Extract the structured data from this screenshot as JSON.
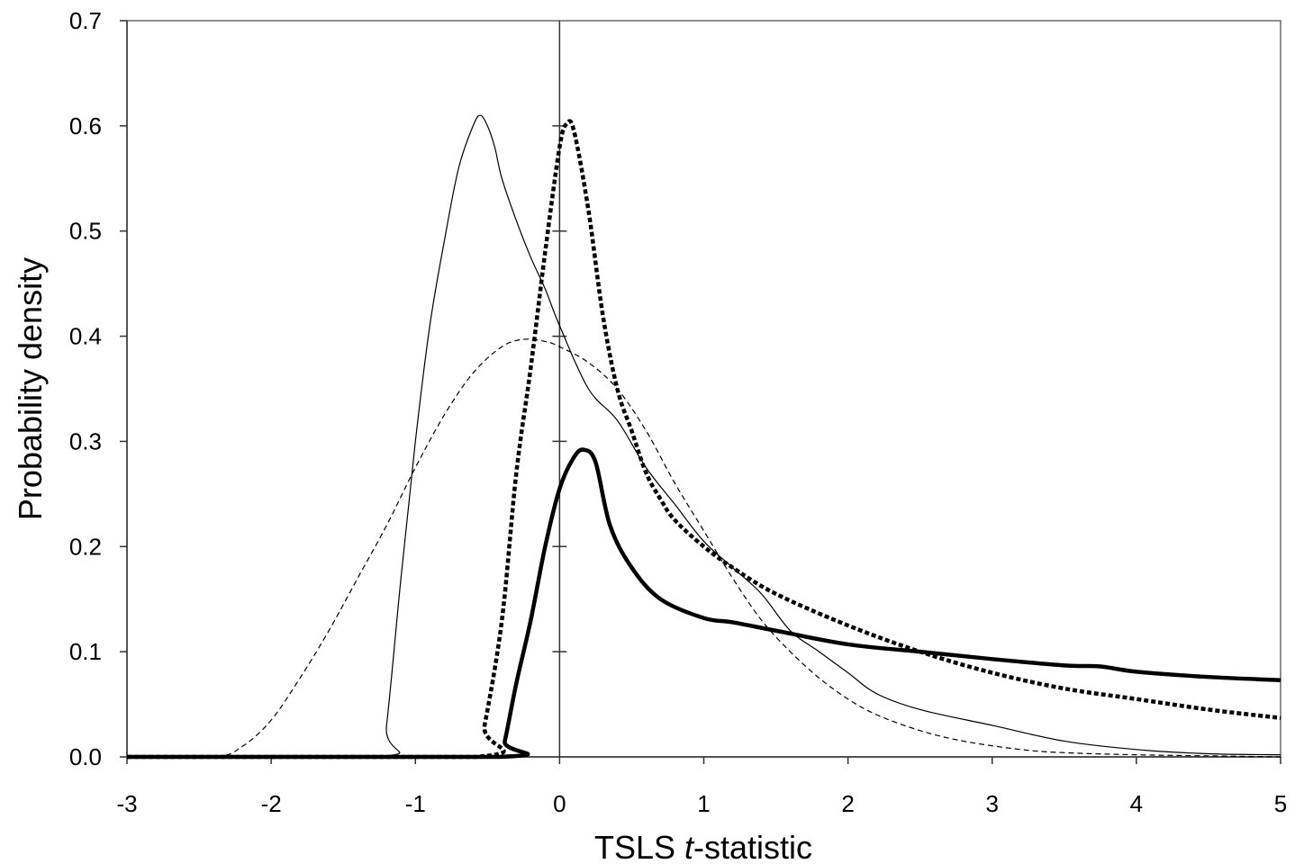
{
  "chart_data": {
    "type": "line",
    "xlabel_prefix": "TSLS ",
    "xlabel_italic": "t",
    "xlabel_suffix": "-statistic",
    "ylabel": "Probability density",
    "xlim": [
      -3,
      5
    ],
    "ylim": [
      0,
      0.7
    ],
    "x_ticks": [
      "-3",
      "-2",
      "-1",
      "0",
      "1",
      "2",
      "3",
      "4",
      "5"
    ],
    "y_ticks": [
      "0.0",
      "0.1",
      "0.2",
      "0.3",
      "0.4",
      "0.5",
      "0.6",
      "0.7"
    ],
    "grid": false,
    "legend": "none",
    "series": [
      {
        "style": "thin-dashed",
        "color": "#000000",
        "points": [
          [
            -3,
            0
          ],
          [
            -2.4,
            0
          ],
          [
            -2.2,
            0.01
          ],
          [
            -2.0,
            0.035
          ],
          [
            -1.8,
            0.075
          ],
          [
            -1.6,
            0.12
          ],
          [
            -1.4,
            0.17
          ],
          [
            -1.2,
            0.22
          ],
          [
            -1.0,
            0.275
          ],
          [
            -0.8,
            0.325
          ],
          [
            -0.6,
            0.365
          ],
          [
            -0.4,
            0.39
          ],
          [
            -0.25,
            0.397
          ],
          [
            -0.1,
            0.395
          ],
          [
            0.0,
            0.39
          ],
          [
            0.2,
            0.375
          ],
          [
            0.4,
            0.35
          ],
          [
            0.6,
            0.31
          ],
          [
            0.8,
            0.26
          ],
          [
            1.0,
            0.215
          ],
          [
            1.2,
            0.17
          ],
          [
            1.4,
            0.13
          ],
          [
            1.6,
            0.1
          ],
          [
            1.8,
            0.075
          ],
          [
            2.0,
            0.055
          ],
          [
            2.2,
            0.04
          ],
          [
            2.5,
            0.025
          ],
          [
            2.8,
            0.015
          ],
          [
            3.2,
            0.007
          ],
          [
            3.5,
            0.004
          ],
          [
            4.0,
            0.002
          ],
          [
            4.5,
            0.001
          ],
          [
            5.0,
            0.0
          ]
        ]
      },
      {
        "style": "thin-solid",
        "color": "#000000",
        "points": [
          [
            -3,
            0
          ],
          [
            -1.25,
            0
          ],
          [
            -1.2,
            0.03
          ],
          [
            -1.1,
            0.17
          ],
          [
            -1.0,
            0.3
          ],
          [
            -0.9,
            0.41
          ],
          [
            -0.8,
            0.49
          ],
          [
            -0.7,
            0.56
          ],
          [
            -0.6,
            0.6
          ],
          [
            -0.55,
            0.61
          ],
          [
            -0.5,
            0.6
          ],
          [
            -0.45,
            0.58
          ],
          [
            -0.4,
            0.55
          ],
          [
            -0.3,
            0.51
          ],
          [
            -0.2,
            0.475
          ],
          [
            -0.1,
            0.445
          ],
          [
            0.0,
            0.41
          ],
          [
            0.2,
            0.35
          ],
          [
            0.4,
            0.32
          ],
          [
            0.6,
            0.275
          ],
          [
            0.8,
            0.24
          ],
          [
            1.0,
            0.205
          ],
          [
            1.2,
            0.18
          ],
          [
            1.4,
            0.155
          ],
          [
            1.6,
            0.12
          ],
          [
            1.8,
            0.1
          ],
          [
            2.0,
            0.08
          ],
          [
            2.2,
            0.06
          ],
          [
            2.5,
            0.045
          ],
          [
            3.0,
            0.03
          ],
          [
            3.5,
            0.015
          ],
          [
            4.0,
            0.007
          ],
          [
            4.5,
            0.003
          ],
          [
            5.0,
            0.002
          ]
        ]
      },
      {
        "style": "thick-dotted",
        "color": "#000000",
        "points": [
          [
            -3,
            0
          ],
          [
            -0.58,
            0
          ],
          [
            -0.52,
            0.03
          ],
          [
            -0.4,
            0.13
          ],
          [
            -0.3,
            0.27
          ],
          [
            -0.2,
            0.37
          ],
          [
            -0.1,
            0.48
          ],
          [
            0.0,
            0.58
          ],
          [
            0.05,
            0.602
          ],
          [
            0.1,
            0.595
          ],
          [
            0.2,
            0.52
          ],
          [
            0.3,
            0.42
          ],
          [
            0.4,
            0.35
          ],
          [
            0.5,
            0.31
          ],
          [
            0.6,
            0.27
          ],
          [
            0.7,
            0.245
          ],
          [
            0.8,
            0.225
          ],
          [
            1.0,
            0.2
          ],
          [
            1.2,
            0.18
          ],
          [
            1.5,
            0.155
          ],
          [
            2.0,
            0.125
          ],
          [
            2.5,
            0.1
          ],
          [
            3.0,
            0.08
          ],
          [
            3.5,
            0.065
          ],
          [
            4.0,
            0.055
          ],
          [
            4.5,
            0.045
          ],
          [
            5.0,
            0.037
          ]
        ]
      },
      {
        "style": "thick-solid",
        "color": "#000000",
        "points": [
          [
            -3,
            0
          ],
          [
            -0.42,
            0
          ],
          [
            -0.38,
            0.015
          ],
          [
            -0.3,
            0.07
          ],
          [
            -0.2,
            0.13
          ],
          [
            -0.1,
            0.2
          ],
          [
            0.0,
            0.255
          ],
          [
            0.1,
            0.285
          ],
          [
            0.17,
            0.292
          ],
          [
            0.25,
            0.28
          ],
          [
            0.35,
            0.22
          ],
          [
            0.5,
            0.18
          ],
          [
            0.7,
            0.15
          ],
          [
            1.0,
            0.132
          ],
          [
            1.2,
            0.128
          ],
          [
            1.5,
            0.12
          ],
          [
            2.0,
            0.107
          ],
          [
            2.5,
            0.1
          ],
          [
            3.0,
            0.093
          ],
          [
            3.5,
            0.087
          ],
          [
            3.75,
            0.086
          ],
          [
            4.0,
            0.081
          ],
          [
            4.5,
            0.076
          ],
          [
            5.0,
            0.073
          ]
        ]
      }
    ]
  }
}
